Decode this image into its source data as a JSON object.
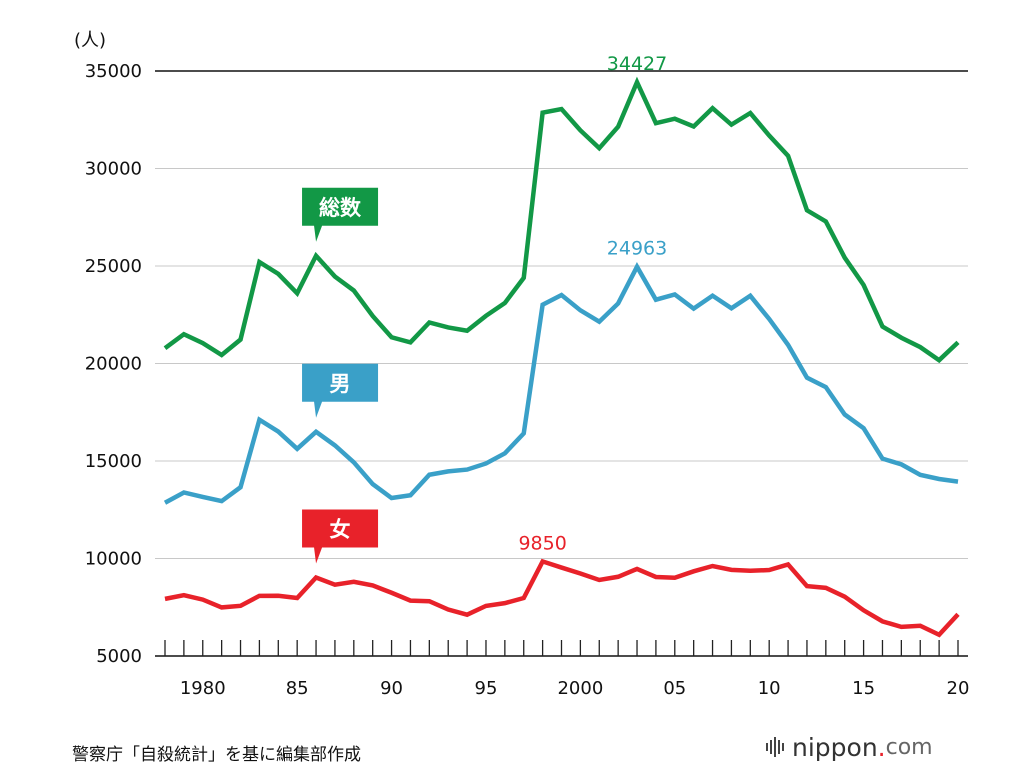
{
  "chart_data": {
    "type": "line",
    "unit_label": "(人)",
    "ylim": [
      5000,
      35000
    ],
    "y_ticks": [
      5000,
      10000,
      15000,
      20000,
      25000,
      30000,
      35000
    ],
    "x": [
      1978,
      1979,
      1980,
      1981,
      1982,
      1983,
      1984,
      1985,
      1986,
      1987,
      1988,
      1989,
      1990,
      1991,
      1992,
      1993,
      1994,
      1995,
      1996,
      1997,
      1998,
      1999,
      2000,
      2001,
      2002,
      2003,
      2004,
      2005,
      2006,
      2007,
      2008,
      2009,
      2010,
      2011,
      2012,
      2013,
      2014,
      2015,
      2016,
      2017,
      2018,
      2019,
      2020
    ],
    "x_tick_labels": [
      {
        "x": 1980,
        "label": "1980"
      },
      {
        "x": 1985,
        "label": "85"
      },
      {
        "x": 1990,
        "label": "90"
      },
      {
        "x": 1995,
        "label": "95"
      },
      {
        "x": 2000,
        "label": "2000"
      },
      {
        "x": 2005,
        "label": "05"
      },
      {
        "x": 2010,
        "label": "10"
      },
      {
        "x": 2015,
        "label": "15"
      },
      {
        "x": 2020,
        "label": "20"
      }
    ],
    "series": [
      {
        "name": "総数",
        "color": "#129846",
        "values": [
          20788,
          21503,
          21048,
          20434,
          21228,
          25202,
          24596,
          23599,
          25524,
          24460,
          23742,
          22436,
          21346,
          21084,
          22104,
          21851,
          21679,
          22445,
          23104,
          24391,
          32863,
          33048,
          31957,
          31042,
          32143,
          34427,
          32325,
          32552,
          32155,
          33093,
          32249,
          32845,
          31690,
          30651,
          27858,
          27283,
          25427,
          24025,
          21897,
          21321,
          20840,
          20169,
          21081
        ],
        "peak": {
          "x": 2003,
          "label": "34427"
        }
      },
      {
        "name": "男",
        "color": "#3aa0c8",
        "values": [
          12859,
          13386,
          13155,
          12942,
          13654,
          17116,
          16508,
          15624,
          16497,
          15802,
          14934,
          13818,
          13102,
          13242,
          14296,
          14468,
          14560,
          14874,
          15393,
          16416,
          23013,
          23512,
          22727,
          22144,
          23080,
          24963,
          23272,
          23540,
          22813,
          23478,
          22831,
          23472,
          22283,
          20955,
          19273,
          18787,
          17386,
          16681,
          15121,
          14826,
          14290,
          14078,
          13943
        ],
        "peak": {
          "x": 2003,
          "label": "24963"
        }
      },
      {
        "name": "女",
        "color": "#e8222a",
        "values": [
          7929,
          8117,
          7893,
          7492,
          7574,
          8086,
          8088,
          7975,
          9027,
          8658,
          8808,
          8618,
          8244,
          7842,
          7808,
          7383,
          7119,
          7571,
          7711,
          7975,
          9850,
          9536,
          9230,
          8898,
          9063,
          9464,
          9053,
          9012,
          9342,
          9615,
          9418,
          9373,
          9407,
          9696,
          8585,
          8496,
          8041,
          7344,
          6776,
          6495,
          6550,
          6091,
          7138
        ],
        "peak": {
          "x": 1998,
          "label": "9850"
        }
      }
    ]
  },
  "source_text": "警察庁「自殺統計」を基に編集部作成",
  "logo": {
    "text": "nippon",
    "dot": ".",
    "suffix": "com"
  }
}
